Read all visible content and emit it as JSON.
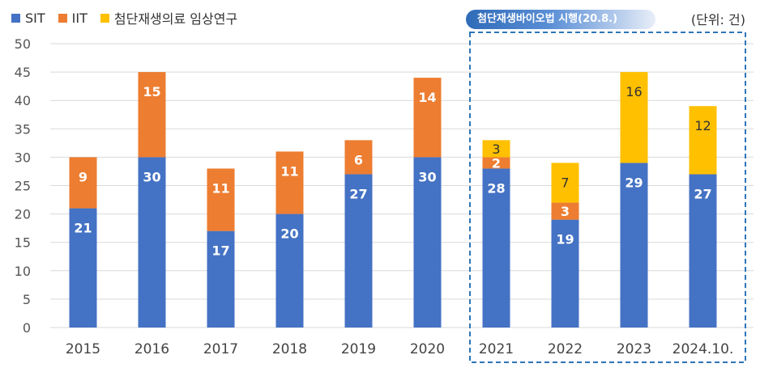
{
  "legend": [
    {
      "label": "SIT",
      "color": "#4472C4"
    },
    {
      "label": "IIT",
      "color": "#ED7D31"
    },
    {
      "label": "첨단재생의료 임상연구",
      "color": "#FFC000"
    }
  ],
  "policy_badge": "첨단재생바이오법 시행(20.8.)",
  "unit_label": "(단위: 건)",
  "chart_data": {
    "type": "bar",
    "stacked": true,
    "categories": [
      "2015",
      "2016",
      "2017",
      "2018",
      "2019",
      "2020",
      "2021",
      "2022",
      "2023",
      "2024.10."
    ],
    "series": [
      {
        "name": "SIT",
        "color": "#4472C4",
        "values": [
          21,
          30,
          17,
          20,
          27,
          30,
          28,
          19,
          29,
          27
        ]
      },
      {
        "name": "IIT",
        "color": "#ED7D31",
        "values": [
          9,
          15,
          11,
          11,
          6,
          14,
          2,
          3,
          0,
          0
        ]
      },
      {
        "name": "첨단재생의료 임상연구",
        "color": "#FFC000",
        "values": [
          0,
          0,
          0,
          0,
          0,
          0,
          3,
          7,
          16,
          12
        ]
      }
    ],
    "ylim": [
      0,
      50
    ],
    "yticks": [
      0,
      5,
      10,
      15,
      20,
      25,
      30,
      35,
      40,
      45,
      50
    ],
    "grid": true,
    "legend_position": "top-left",
    "highlighted_categories": [
      "2021",
      "2022",
      "2023",
      "2024.10."
    ]
  }
}
